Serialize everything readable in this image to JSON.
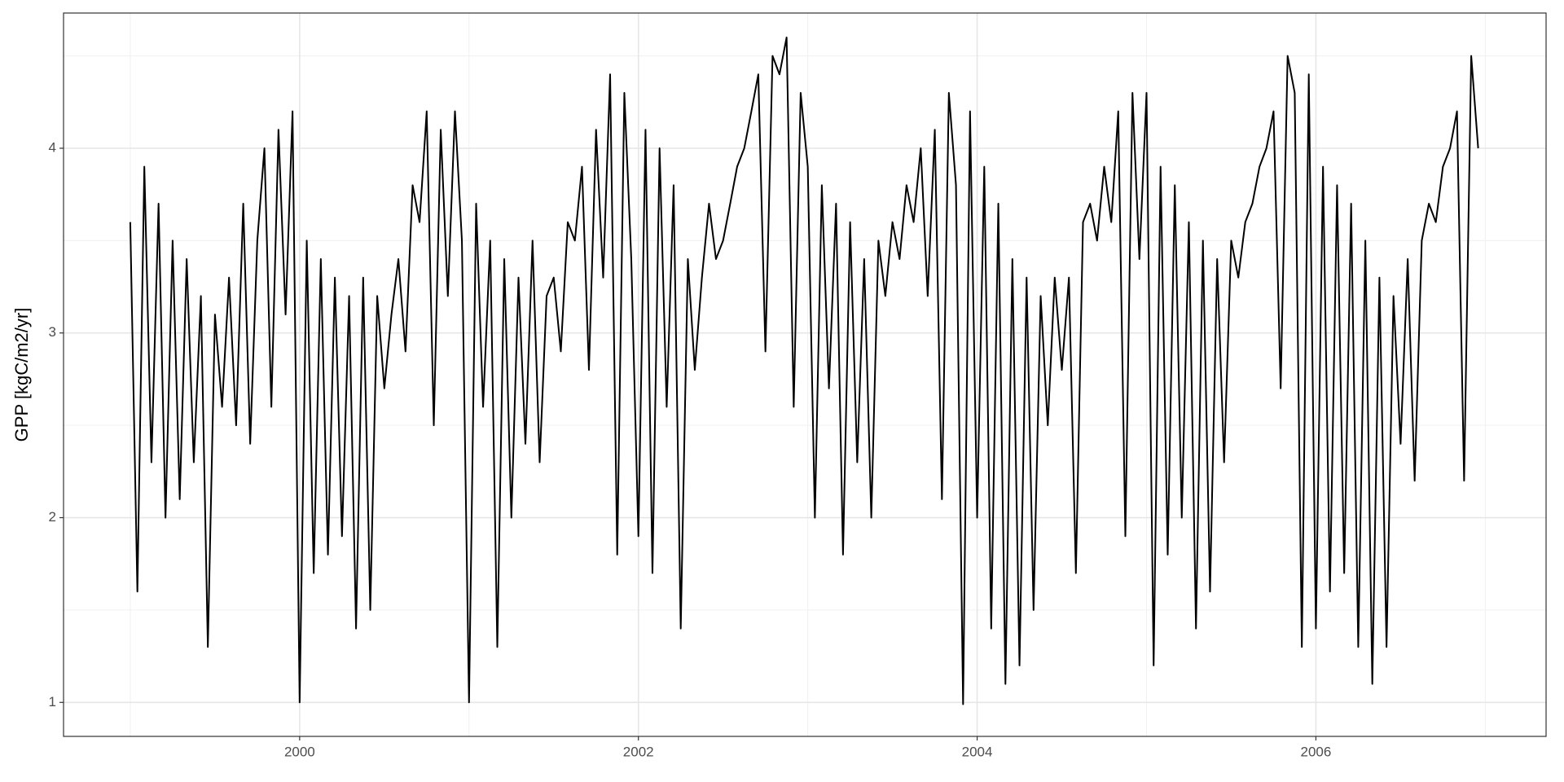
{
  "chart_data": {
    "type": "line",
    "y_label": "GPP [kgC/m2/yr]",
    "xlim": [
      1998.606,
      2007.359
    ],
    "xticks": [
      2000,
      2002,
      2004,
      2006
    ],
    "minor_xticks": [
      1999,
      2001,
      2003,
      2005,
      2007
    ],
    "ylim": [
      0.816,
      4.732
    ],
    "yticks": [
      1,
      2,
      3,
      4
    ],
    "minor_yticks": [
      1.5,
      2.5,
      3.5,
      4.5
    ],
    "grid": true,
    "color": "#000000",
    "x": [
      1999.0,
      1999.042,
      1999.083,
      1999.125,
      1999.167,
      1999.208,
      1999.25,
      1999.292,
      1999.333,
      1999.375,
      1999.417,
      1999.458,
      1999.5,
      1999.542,
      1999.583,
      1999.625,
      1999.667,
      1999.708,
      1999.75,
      1999.792,
      1999.833,
      1999.875,
      1999.917,
      1999.958,
      2000.0,
      2000.042,
      2000.083,
      2000.125,
      2000.167,
      2000.208,
      2000.25,
      2000.292,
      2000.333,
      2000.375,
      2000.417,
      2000.458,
      2000.5,
      2000.542,
      2000.583,
      2000.625,
      2000.667,
      2000.708,
      2000.75,
      2000.792,
      2000.833,
      2000.875,
      2000.917,
      2000.958,
      2001.0,
      2001.042,
      2001.083,
      2001.125,
      2001.167,
      2001.208,
      2001.25,
      2001.292,
      2001.333,
      2001.375,
      2001.417,
      2001.458,
      2001.5,
      2001.542,
      2001.583,
      2001.625,
      2001.667,
      2001.708,
      2001.75,
      2001.792,
      2001.833,
      2001.875,
      2001.917,
      2001.958,
      2002.0,
      2002.042,
      2002.083,
      2002.125,
      2002.167,
      2002.208,
      2002.25,
      2002.292,
      2002.333,
      2002.375,
      2002.417,
      2002.458,
      2002.5,
      2002.542,
      2002.583,
      2002.625,
      2002.667,
      2002.708,
      2002.75,
      2002.792,
      2002.833,
      2002.875,
      2002.917,
      2002.958,
      2003.0,
      2003.042,
      2003.083,
      2003.125,
      2003.167,
      2003.208,
      2003.25,
      2003.292,
      2003.333,
      2003.375,
      2003.417,
      2003.458,
      2003.5,
      2003.542,
      2003.583,
      2003.625,
      2003.667,
      2003.708,
      2003.75,
      2003.792,
      2003.833,
      2003.875,
      2003.917,
      2003.958,
      2004.0,
      2004.042,
      2004.083,
      2004.125,
      2004.167,
      2004.208,
      2004.25,
      2004.292,
      2004.333,
      2004.375,
      2004.417,
      2004.458,
      2004.5,
      2004.542,
      2004.583,
      2004.625,
      2004.667,
      2004.708,
      2004.75,
      2004.792,
      2004.833,
      2004.875,
      2004.917,
      2004.958,
      2005.0,
      2005.042,
      2005.083,
      2005.125,
      2005.167,
      2005.208,
      2005.25,
      2005.292,
      2005.333,
      2005.375,
      2005.417,
      2005.458,
      2005.5,
      2005.542,
      2005.583,
      2005.625,
      2005.667,
      2005.708,
      2005.75,
      2005.792,
      2005.833,
      2005.875,
      2005.917,
      2005.958,
      2006.0,
      2006.042,
      2006.083,
      2006.125,
      2006.167,
      2006.208,
      2006.25,
      2006.292,
      2006.333,
      2006.375,
      2006.417,
      2006.458,
      2006.5,
      2006.542,
      2006.583,
      2006.625,
      2006.667,
      2006.708,
      2006.75,
      2006.792,
      2006.833,
      2006.875,
      2006.917,
      2006.958
    ],
    "values": [
      3.6,
      1.6,
      3.9,
      2.3,
      3.7,
      2.0,
      3.5,
      2.1,
      3.4,
      2.3,
      3.2,
      1.3,
      3.1,
      2.6,
      3.3,
      2.5,
      3.7,
      2.4,
      3.5,
      4.0,
      2.6,
      4.1,
      3.1,
      4.2,
      1.0,
      3.5,
      1.7,
      3.4,
      1.8,
      3.3,
      1.9,
      3.2,
      1.4,
      3.3,
      1.5,
      3.2,
      2.7,
      3.1,
      3.4,
      2.9,
      3.8,
      3.6,
      4.2,
      2.5,
      4.1,
      3.2,
      4.2,
      3.5,
      1.0,
      3.7,
      2.6,
      3.5,
      1.3,
      3.4,
      2.0,
      3.3,
      2.4,
      3.5,
      2.3,
      3.2,
      3.3,
      2.9,
      3.6,
      3.5,
      3.9,
      2.8,
      4.1,
      3.3,
      4.4,
      1.8,
      4.3,
      3.4,
      1.9,
      4.1,
      1.7,
      4.0,
      2.6,
      3.8,
      1.4,
      3.4,
      2.8,
      3.3,
      3.7,
      3.4,
      3.5,
      3.7,
      3.9,
      4.0,
      4.2,
      4.4,
      2.9,
      4.5,
      4.4,
      4.6,
      2.6,
      4.3,
      3.9,
      2.0,
      3.8,
      2.7,
      3.7,
      1.8,
      3.6,
      2.3,
      3.4,
      2.0,
      3.5,
      3.2,
      3.6,
      3.4,
      3.8,
      3.6,
      4.0,
      3.2,
      4.1,
      2.1,
      4.3,
      3.8,
      0.99,
      4.2,
      2.0,
      3.9,
      1.4,
      3.7,
      1.1,
      3.4,
      1.2,
      3.3,
      1.5,
      3.2,
      2.5,
      3.3,
      2.8,
      3.3,
      1.7,
      3.6,
      3.7,
      3.5,
      3.9,
      3.6,
      4.2,
      1.9,
      4.3,
      3.4,
      4.3,
      1.2,
      3.9,
      1.8,
      3.8,
      2.0,
      3.6,
      1.4,
      3.5,
      1.6,
      3.4,
      2.3,
      3.5,
      3.3,
      3.6,
      3.7,
      3.9,
      4.0,
      4.2,
      2.7,
      4.5,
      4.3,
      1.3,
      4.4,
      1.4,
      3.9,
      1.6,
      3.8,
      1.7,
      3.7,
      1.3,
      3.5,
      1.1,
      3.3,
      1.3,
      3.2,
      2.4,
      3.4,
      2.2,
      3.5,
      3.7,
      3.6,
      3.9,
      4.0,
      4.2,
      2.2,
      4.5,
      4.0
    ]
  }
}
